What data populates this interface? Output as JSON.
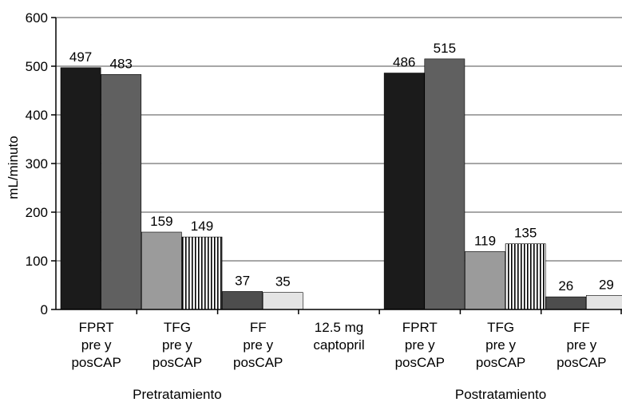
{
  "chart_data": {
    "type": "bar",
    "title": "",
    "ylabel": "mL/minuto",
    "xlabel": "",
    "ylim": [
      0,
      600
    ],
    "yticks": [
      0,
      100,
      200,
      300,
      400,
      500,
      600
    ],
    "grid": true,
    "colors": {
      "fprt_pre": "#1b1b1b",
      "fprt_pos": "#606060",
      "tfg_pre": "#9b9b9b",
      "tfg_pos": "vertical-stripes",
      "ff_pre": "#4d4d4d",
      "ff_pos": "#e4e4e4"
    },
    "groups": [
      {
        "name": "Pretratamiento",
        "categories": [
          {
            "label": [
              "FPRT",
              "pre y",
              "posCAP"
            ],
            "values": [
              497,
              483
            ],
            "styles": [
              "fprt_pre",
              "fprt_pos"
            ]
          },
          {
            "label": [
              "TFG",
              "pre y",
              "posCAP"
            ],
            "values": [
              159,
              149
            ],
            "styles": [
              "tfg_pre",
              "tfg_pos"
            ]
          },
          {
            "label": [
              "FF",
              "pre y",
              "posCAP"
            ],
            "values": [
              37,
              35
            ],
            "styles": [
              "ff_pre",
              "ff_pos"
            ]
          }
        ]
      },
      {
        "name": "",
        "categories": [
          {
            "label": [
              "12.5 mg",
              "captopril"
            ],
            "values": [],
            "styles": []
          }
        ]
      },
      {
        "name": "Postratamiento",
        "categories": [
          {
            "label": [
              "FPRT",
              "pre y",
              "posCAP"
            ],
            "values": [
              486,
              515
            ],
            "styles": [
              "fprt_pre",
              "fprt_pos"
            ]
          },
          {
            "label": [
              "TFG",
              "pre y",
              "posCAP"
            ],
            "values": [
              119,
              135
            ],
            "styles": [
              "tfg_pre",
              "tfg_pos"
            ]
          },
          {
            "label": [
              "FF",
              "pre y",
              "posCAP"
            ],
            "values": [
              26,
              29
            ],
            "styles": [
              "ff_pre",
              "ff_pos"
            ]
          }
        ]
      }
    ]
  }
}
